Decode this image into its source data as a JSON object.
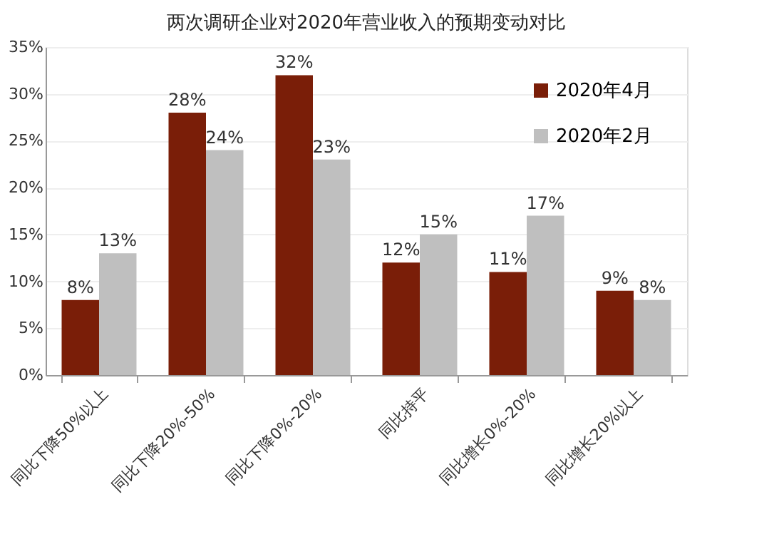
{
  "chart_data": {
    "type": "bar",
    "title": "两次调研企业对2020年营业收入的预期变动对比",
    "categories": [
      "同比下降50%以上",
      "同比下降20%-50%",
      "同比下降0%-20%",
      "同比持平",
      "同比增长0%-20%",
      "同比增长20%以上"
    ],
    "series": [
      {
        "name": "2020年4月",
        "color": "#7a1e08",
        "values": [
          8,
          28,
          32,
          12,
          11,
          9
        ],
        "value_labels": [
          "8%",
          "28%",
          "32%",
          "12%",
          "11%",
          "9%"
        ]
      },
      {
        "name": "2020年2月",
        "color": "#bfbfbf",
        "values": [
          13,
          24,
          23,
          15,
          17,
          8
        ],
        "value_labels": [
          "13%",
          "24%",
          "23%",
          "15%",
          "17%",
          "8%"
        ]
      }
    ],
    "ylim": [
      0,
      35
    ],
    "yticks": [
      {
        "value": 0,
        "label": "0%"
      },
      {
        "value": 5,
        "label": "5%"
      },
      {
        "value": 10,
        "label": "10%"
      },
      {
        "value": 15,
        "label": "15%"
      },
      {
        "value": 20,
        "label": "20%"
      },
      {
        "value": 25,
        "label": "25%"
      },
      {
        "value": 30,
        "label": "30%"
      },
      {
        "value": 35,
        "label": "35%"
      }
    ],
    "data_labels": true,
    "grid": "y",
    "legend": "top right"
  }
}
